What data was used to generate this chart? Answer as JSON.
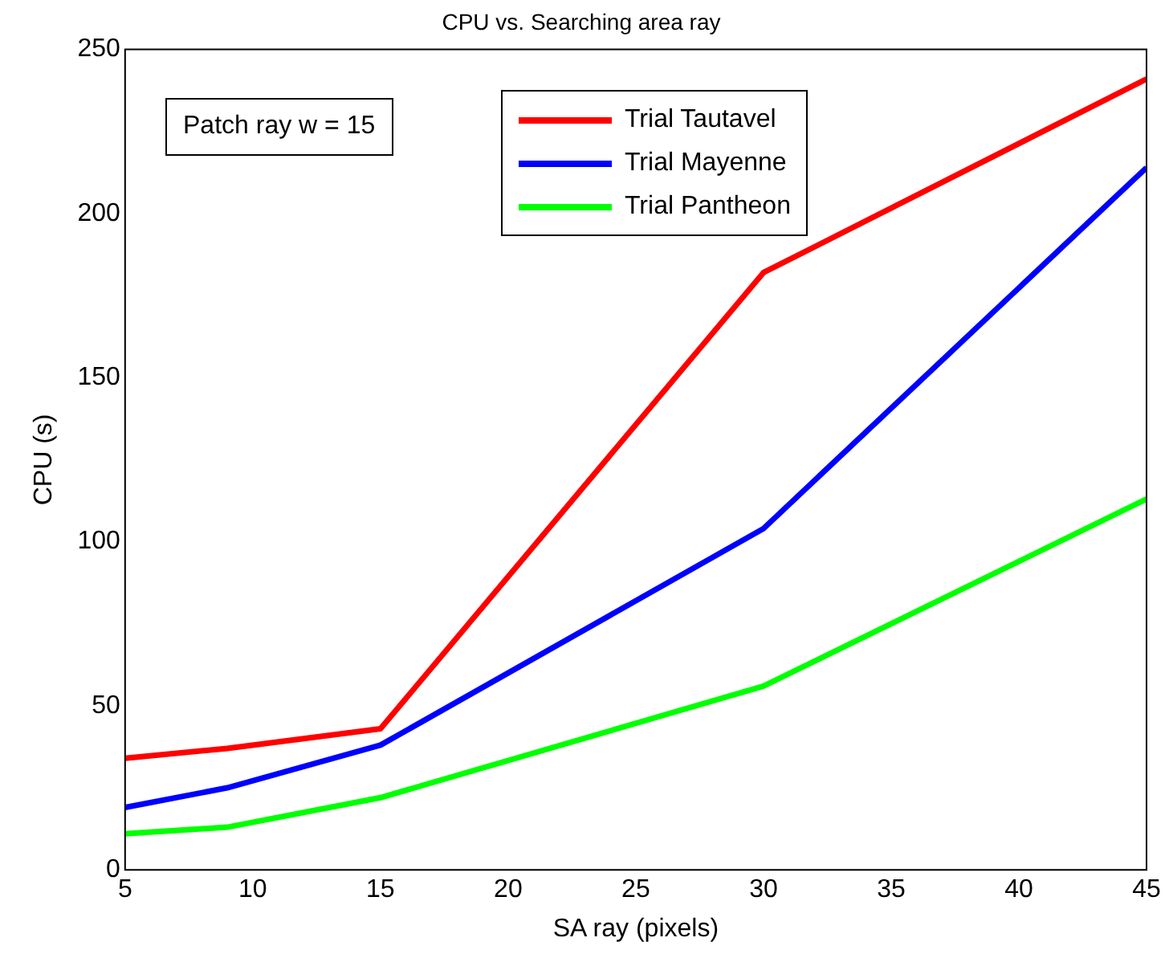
{
  "chart_data": {
    "type": "line",
    "title": "CPU vs. Searching area ray",
    "xlabel": "SA ray (pixels)",
    "ylabel": "CPU (s)",
    "annotations": [
      "Patch ray w = 15"
    ],
    "x": [
      5,
      9,
      15,
      30,
      45
    ],
    "series": [
      {
        "name": "Trial Tautavel",
        "color": "#ff0000",
        "values": [
          34,
          37,
          43,
          182,
          241
        ]
      },
      {
        "name": "Trial Mayenne",
        "color": "#0000ff",
        "values": [
          19,
          25,
          38,
          104,
          214
        ]
      },
      {
        "name": "Trial Pantheon",
        "color": "#00ff00",
        "values": [
          11,
          13,
          22,
          56,
          113
        ]
      }
    ],
    "xlim": [
      5,
      45
    ],
    "xticks": [
      5,
      10,
      15,
      20,
      25,
      30,
      35,
      40,
      45
    ],
    "ylim": [
      0,
      250
    ],
    "yticks": [
      0,
      50,
      100,
      150,
      200,
      250
    ],
    "legend": "top",
    "marker": "none",
    "line_style": "solid"
  }
}
